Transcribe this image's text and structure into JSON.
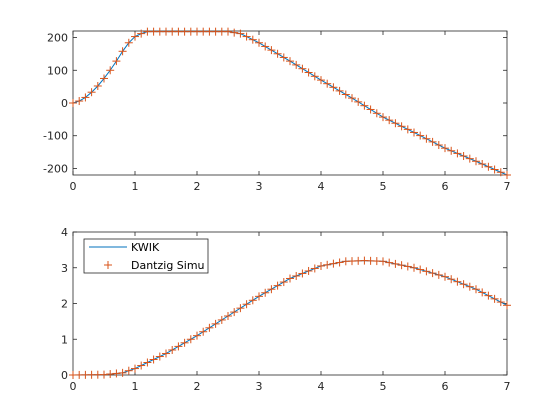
{
  "colors": {
    "kwik": "#0072BD",
    "dantzig": "#D95319",
    "axis": "#262626"
  },
  "chart_data": [
    {
      "type": "line",
      "xlim": [
        0,
        7
      ],
      "ylim": [
        -220,
        220
      ],
      "x_ticks": [
        "0",
        "1",
        "2",
        "3",
        "4",
        "5",
        "6",
        "7"
      ],
      "y_ticks": [
        "-200",
        "-100",
        "0",
        "100",
        "200"
      ],
      "y_tick_values": [
        -200,
        -100,
        0,
        100,
        200
      ],
      "legend": null,
      "series": [
        {
          "x": [
            0,
            0.1,
            0.2,
            0.3,
            0.4,
            0.5,
            0.6,
            0.7,
            0.8,
            0.9,
            1.0,
            1.1,
            1.2,
            1.5,
            2.0,
            2.5,
            2.7,
            2.8,
            3.0,
            3.5,
            4.0,
            4.5,
            5.0,
            5.5,
            6.0,
            6.5,
            7.0
          ],
          "values": [
            0,
            6,
            17,
            33,
            52,
            75,
            100,
            128,
            158,
            184,
            203,
            212,
            218,
            218,
            218,
            218,
            212,
            203,
            184,
            128,
            70,
            15,
            -43,
            -90,
            -138,
            -178,
            -220
          ]
        },
        {
          "x": [
            0,
            0.1,
            0.2,
            0.3,
            0.4,
            0.5,
            0.6,
            0.7,
            0.8,
            0.9,
            1.0,
            1.1,
            1.2,
            1.5,
            2.0,
            2.5,
            2.7,
            2.8,
            3.0,
            3.5,
            4.0,
            4.5,
            5.0,
            5.5,
            6.0,
            6.5,
            7.0
          ],
          "values": [
            0,
            6,
            17,
            33,
            52,
            75,
            100,
            128,
            158,
            184,
            203,
            212,
            218,
            218,
            218,
            218,
            212,
            203,
            184,
            128,
            70,
            15,
            -43,
            -90,
            -138,
            -178,
            -220
          ]
        }
      ]
    },
    {
      "type": "line",
      "xlim": [
        0,
        7
      ],
      "ylim": [
        0,
        4
      ],
      "x_ticks": [
        "0",
        "1",
        "2",
        "3",
        "4",
        "5",
        "6",
        "7"
      ],
      "y_ticks": [
        "0",
        "1",
        "2",
        "3",
        "4"
      ],
      "y_tick_values": [
        0,
        1,
        2,
        3,
        4
      ],
      "legend": "top-left",
      "series": [
        {
          "name": "KWIK",
          "x": [
            0,
            0.5,
            0.8,
            1.0,
            1.2,
            1.5,
            2.0,
            2.5,
            3.0,
            3.5,
            4.0,
            4.4,
            4.7,
            5.0,
            5.5,
            6.0,
            6.5,
            7.0
          ],
          "values": [
            0,
            0.01,
            0.06,
            0.18,
            0.35,
            0.6,
            1.1,
            1.65,
            2.2,
            2.7,
            3.05,
            3.18,
            3.2,
            3.18,
            3.0,
            2.75,
            2.4,
            1.95
          ]
        },
        {
          "name": "Dantzig Simu",
          "x": [
            0,
            0.5,
            0.8,
            1.0,
            1.2,
            1.5,
            2.0,
            2.5,
            3.0,
            3.5,
            4.0,
            4.4,
            4.7,
            5.0,
            5.5,
            6.0,
            6.5,
            7.0
          ],
          "values": [
            0,
            0.01,
            0.06,
            0.18,
            0.35,
            0.6,
            1.1,
            1.65,
            2.2,
            2.7,
            3.05,
            3.18,
            3.2,
            3.18,
            3.0,
            2.75,
            2.4,
            1.95
          ]
        }
      ]
    }
  ]
}
